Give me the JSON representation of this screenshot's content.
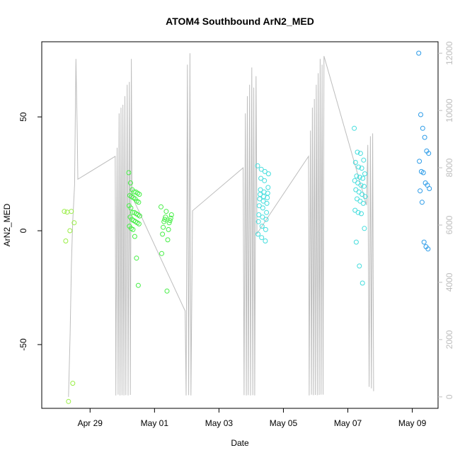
{
  "chart_data": {
    "type": "scatter",
    "title": "ATOM4 Southbound ArN2_MED",
    "xlabel": "Date",
    "ylabel": "ArN2_MED",
    "x_ticks": [
      "Apr 29",
      "May 01",
      "May 03",
      "May 05",
      "May 07",
      "May 09"
    ],
    "y_ticks": [
      -50,
      0,
      50
    ],
    "y2_ticks": [
      0,
      2000,
      4000,
      6000,
      8000,
      10000,
      12000
    ],
    "ylim": [
      -78,
      83
    ],
    "y2lim": [
      -400,
      12400
    ],
    "grid": false,
    "colors": {
      "secondary_line": "#bdbdbd",
      "points_early": "#99ee44",
      "points_mid": "#44ee44",
      "points_late": "#44dddd",
      "points_last": "#2b9be8"
    },
    "series": [
      {
        "role": "points",
        "groups": [
          {
            "date": "2016-04-28",
            "color_key": "points_early",
            "values": [
              8.5,
              8.5,
              8.2,
              3.5,
              0,
              -4.5,
              -67,
              -75
            ]
          },
          {
            "date": "2016-04-30",
            "color_key": "points_mid",
            "values": [
              25.5,
              21,
              18,
              17,
              17,
              16.5,
              16,
              15.5,
              15,
              14.5,
              14,
              13,
              12.5,
              11,
              10,
              8,
              8,
              7.5,
              7,
              6.5,
              6,
              5,
              4.5,
              4,
              3.5,
              3,
              2,
              1,
              0.5,
              -2.5,
              -12,
              -24
            ]
          },
          {
            "date": "2016-05-01",
            "color_key": "points_mid",
            "values": [
              10.5,
              8.5,
              7,
              6,
              5.5,
              5,
              4.5,
              4,
              3.5,
              1.5,
              0.5,
              -1.5,
              -4,
              -10,
              -26.5
            ]
          },
          {
            "date": "2016-05-04",
            "color_key": "points_late",
            "values": [
              28.5,
              27,
              26,
              25,
              23,
              22,
              19,
              18,
              17,
              16.5,
              16,
              15,
              14.5,
              14,
              13,
              12,
              11,
              10,
              8,
              7,
              6,
              5,
              4,
              2,
              0.5,
              -1.5,
              -3,
              -4.5
            ]
          },
          {
            "date": "2016-05-07",
            "color_key": "points_late",
            "values": [
              45,
              34.5,
              34,
              31,
              30,
              28,
              27.5,
              25,
              24,
              23.5,
              23,
              22,
              21,
              20,
              19.5,
              18,
              17,
              16,
              15,
              14,
              13,
              12,
              9,
              8,
              7.5,
              1,
              -5,
              -15.5,
              -23
            ]
          },
          {
            "date": "2016-05-09",
            "color_key": "points_last",
            "values": [
              78,
              51,
              45,
              41,
              35,
              34,
              30.5,
              26,
              25.5,
              21,
              20,
              18.5,
              17.5,
              12.5,
              -5,
              -7,
              -8
            ]
          }
        ]
      },
      {
        "role": "secondary_line",
        "axis": "right",
        "points": [
          [
            0.33,
            0
          ],
          [
            0.38,
            2200
          ],
          [
            0.42,
            4600
          ],
          [
            0.46,
            6100
          ],
          [
            0.52,
            7400
          ],
          [
            0.56,
            11800
          ],
          [
            0.6,
            9300
          ],
          [
            0.62,
            7600
          ],
          [
            1.78,
            8400
          ],
          [
            1.8,
            50
          ],
          [
            1.84,
            8700
          ],
          [
            1.87,
            80
          ],
          [
            1.9,
            9900
          ],
          [
            1.93,
            50
          ],
          [
            1.96,
            10100
          ],
          [
            1.99,
            60
          ],
          [
            2.02,
            10200
          ],
          [
            2.05,
            50
          ],
          [
            2.08,
            10500
          ],
          [
            2.11,
            60
          ],
          [
            2.15,
            10900
          ],
          [
            2.18,
            50
          ],
          [
            2.22,
            11000
          ],
          [
            2.25,
            70
          ],
          [
            2.28,
            11800
          ],
          [
            2.3,
            7000
          ],
          [
            3.95,
            3000
          ],
          [
            3.98,
            50
          ],
          [
            4.02,
            11600
          ],
          [
            4.06,
            60
          ],
          [
            4.1,
            12000
          ],
          [
            4.13,
            50
          ],
          [
            4.18,
            6500
          ],
          [
            5.75,
            8000
          ],
          [
            5.78,
            60
          ],
          [
            5.82,
            9900
          ],
          [
            5.85,
            50
          ],
          [
            5.88,
            10500
          ],
          [
            5.91,
            60
          ],
          [
            5.95,
            10900
          ],
          [
            5.98,
            50
          ],
          [
            6.02,
            11500
          ],
          [
            6.05,
            60
          ],
          [
            6.08,
            10800
          ],
          [
            6.11,
            50
          ],
          [
            6.15,
            11200
          ],
          [
            6.18,
            5700
          ],
          [
            7.78,
            8400
          ],
          [
            7.8,
            50
          ],
          [
            7.84,
            9300
          ],
          [
            7.87,
            80
          ],
          [
            7.9,
            10100
          ],
          [
            7.93,
            60
          ],
          [
            7.96,
            10400
          ],
          [
            7.99,
            70
          ],
          [
            8.02,
            10900
          ],
          [
            8.05,
            60
          ],
          [
            8.08,
            11300
          ],
          [
            8.11,
            70
          ],
          [
            8.14,
            11800
          ],
          [
            8.17,
            80
          ],
          [
            8.2,
            11600
          ],
          [
            8.23,
            80
          ],
          [
            8.26,
            11900
          ],
          [
            9.58,
            6700
          ],
          [
            9.62,
            8800
          ],
          [
            9.66,
            350
          ],
          [
            9.7,
            9100
          ],
          [
            9.73,
            300
          ],
          [
            9.77,
            9200
          ],
          [
            9.8,
            200
          ]
        ]
      }
    ]
  }
}
